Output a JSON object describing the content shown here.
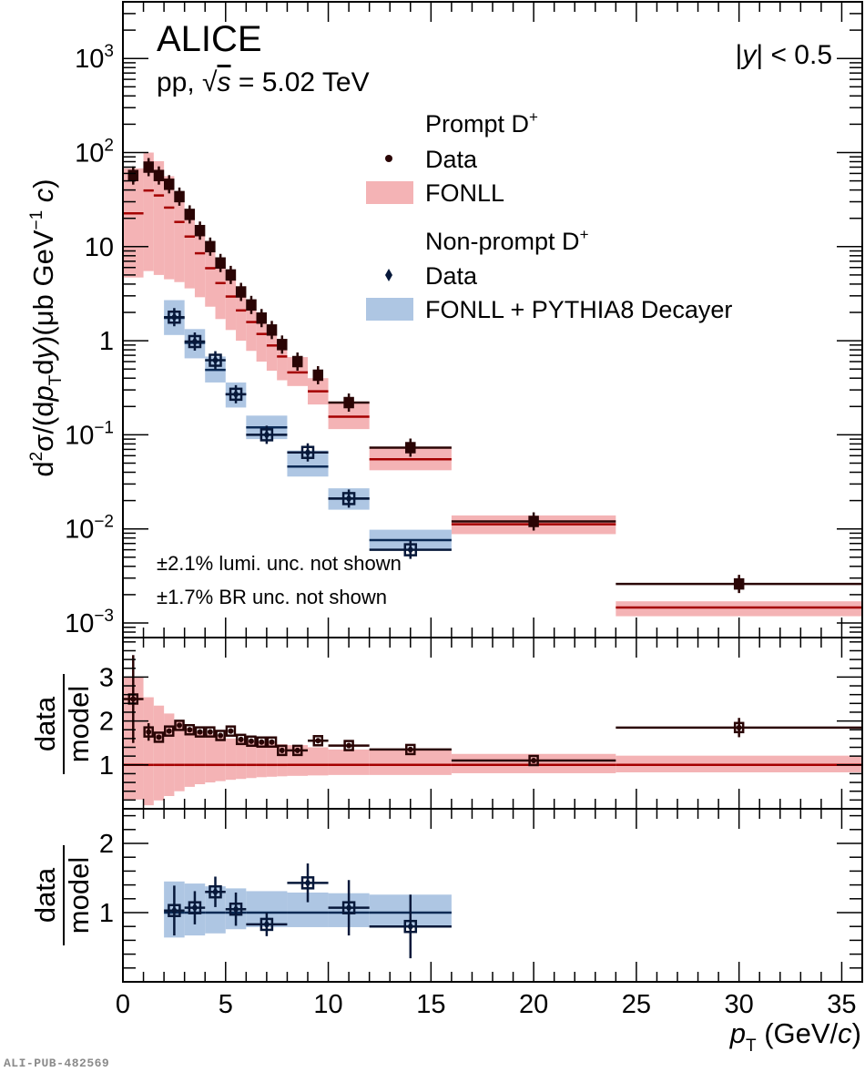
{
  "watermark": "ALI-PUB-482569",
  "colors": {
    "prompt_band": "#f4b3b5",
    "prompt_line": "#a50000",
    "prompt_marker": "#2a0505",
    "nonprompt_band": "#aec6e3",
    "nonprompt_line": "#0b2a55",
    "nonprompt_marker": "#07183a"
  },
  "annotations": {
    "experiment": "ALICE",
    "system": "pp, √s = 5.02 TeV",
    "rapidity": "|y| < 0.5",
    "lumi_note": "±2.1% lumi. unc. not shown",
    "br_note": "±1.7% BR unc. not shown"
  },
  "legend": {
    "prompt_header": "Prompt D+",
    "prompt_data": "Data",
    "prompt_model": "FONLL",
    "nonprompt_header": "Non-prompt D+",
    "nonprompt_data": "Data",
    "nonprompt_model": "FONLL + PYTHIA8 Decayer"
  },
  "chart_data": [
    {
      "type": "scatter",
      "panel": "cross-section",
      "ylabel": "d²σ/(dpT dy)(μb GeV⁻¹ c)",
      "yscale": "log",
      "ylim": [
        0.0007,
        4000
      ],
      "xlim": [
        0,
        36
      ],
      "ytick_labels": [
        "10⁻³",
        "10⁻²",
        "10⁻¹",
        "1",
        "10",
        "10²",
        "10³"
      ],
      "ytick_values": [
        0.001,
        0.01,
        0.1,
        1,
        10,
        100,
        1000
      ],
      "series": [
        {
          "name": "Prompt D+ Data",
          "bins": [
            [
              0,
              1
            ],
            [
              1,
              1.5
            ],
            [
              1.5,
              2
            ],
            [
              2,
              2.5
            ],
            [
              2.5,
              3
            ],
            [
              3,
              3.5
            ],
            [
              3.5,
              4
            ],
            [
              4,
              4.5
            ],
            [
              4.5,
              5
            ],
            [
              5,
              5.5
            ],
            [
              5.5,
              6
            ],
            [
              6,
              6.5
            ],
            [
              6.5,
              7
            ],
            [
              7,
              7.5
            ],
            [
              7.5,
              8
            ],
            [
              8,
              9
            ],
            [
              9,
              10
            ],
            [
              10,
              12
            ],
            [
              12,
              16
            ],
            [
              16,
              24
            ],
            [
              24,
              36
            ]
          ],
          "values": [
            57,
            70,
            57,
            46,
            34,
            22,
            14.8,
            10.0,
            6.7,
            5.0,
            3.3,
            2.4,
            1.74,
            1.3,
            0.91,
            0.6,
            0.43,
            0.22,
            0.073,
            0.012,
            0.0026
          ]
        },
        {
          "name": "Prompt D+ FONLL",
          "bins": [
            [
              0,
              1
            ],
            [
              1,
              1.5
            ],
            [
              1.5,
              2
            ],
            [
              2,
              2.5
            ],
            [
              2.5,
              3
            ],
            [
              3,
              3.5
            ],
            [
              3.5,
              4
            ],
            [
              4,
              4.5
            ],
            [
              4.5,
              5
            ],
            [
              5,
              5.5
            ],
            [
              5.5,
              6
            ],
            [
              6,
              6.5
            ],
            [
              6.5,
              7
            ],
            [
              7,
              7.5
            ],
            [
              7.5,
              8
            ],
            [
              8,
              9
            ],
            [
              9,
              10
            ],
            [
              10,
              12
            ],
            [
              12,
              16
            ],
            [
              16,
              24
            ],
            [
              24,
              36
            ]
          ],
          "central": [
            22.6,
            39.5,
            35,
            26,
            18.3,
            12.8,
            8.5,
            5.9,
            4.1,
            2.95,
            2.1,
            1.58,
            1.18,
            0.89,
            0.68,
            0.46,
            0.29,
            0.156,
            0.055,
            0.0112,
            0.00146
          ],
          "upper": [
            68,
            100,
            81,
            56,
            37,
            24,
            15.2,
            10.3,
            6.9,
            4.9,
            3.4,
            2.5,
            1.8,
            1.33,
            1.0,
            0.67,
            0.4,
            0.225,
            0.073,
            0.0139,
            0.0017
          ],
          "lower": [
            4.7,
            5.5,
            5.0,
            4.5,
            4.2,
            3.6,
            2.9,
            2.3,
            1.7,
            1.3,
            1.0,
            0.78,
            0.6,
            0.48,
            0.38,
            0.33,
            0.21,
            0.115,
            0.042,
            0.0088,
            0.00118
          ]
        },
        {
          "name": "Non-prompt D+ Data",
          "bins": [
            [
              2,
              3
            ],
            [
              3,
              4
            ],
            [
              4,
              5
            ],
            [
              5,
              6
            ],
            [
              6,
              8
            ],
            [
              8,
              10
            ],
            [
              10,
              12
            ],
            [
              12,
              16
            ]
          ],
          "values": [
            1.78,
            0.98,
            0.62,
            0.27,
            0.1,
            0.065,
            0.021,
            0.006
          ]
        },
        {
          "name": "Non-prompt D+ FONLL + PYTHIA8 Decayer",
          "bins": [
            [
              2,
              3
            ],
            [
              3,
              4
            ],
            [
              4,
              5
            ],
            [
              5,
              6
            ],
            [
              6,
              8
            ],
            [
              8,
              10
            ],
            [
              10,
              12
            ],
            [
              12,
              16
            ]
          ],
          "central": [
            1.75,
            0.95,
            0.49,
            0.27,
            0.12,
            0.046,
            0.021,
            0.0076
          ],
          "upper": [
            2.7,
            1.33,
            0.68,
            0.36,
            0.16,
            0.068,
            0.027,
            0.0098
          ],
          "lower": [
            1.15,
            0.65,
            0.36,
            0.195,
            0.09,
            0.036,
            0.016,
            0.006
          ]
        }
      ]
    },
    {
      "type": "scatter",
      "panel": "ratio-prompt",
      "ylabel": "data/model",
      "ylim": [
        0,
        3.9
      ],
      "xlim": [
        0,
        36
      ],
      "ytick_labels": [
        "1",
        "2",
        "3"
      ],
      "ytick_values": [
        1,
        2,
        3
      ],
      "series": [
        {
          "name": "Prompt D+ data/FONLL",
          "bins": [
            [
              0,
              1
            ],
            [
              1,
              1.5
            ],
            [
              1.5,
              2
            ],
            [
              2,
              2.5
            ],
            [
              2.5,
              3
            ],
            [
              3,
              3.5
            ],
            [
              3.5,
              4
            ],
            [
              4,
              4.5
            ],
            [
              4.5,
              5
            ],
            [
              5,
              5.5
            ],
            [
              5.5,
              6
            ],
            [
              6,
              6.5
            ],
            [
              6.5,
              7
            ],
            [
              7,
              7.5
            ],
            [
              7.5,
              8
            ],
            [
              8,
              9
            ],
            [
              9,
              10
            ],
            [
              10,
              12
            ],
            [
              12,
              16
            ],
            [
              16,
              24
            ],
            [
              24,
              36
            ]
          ],
          "values": [
            2.5,
            1.75,
            1.63,
            1.77,
            1.9,
            1.8,
            1.75,
            1.75,
            1.67,
            1.77,
            1.58,
            1.54,
            1.52,
            1.52,
            1.33,
            1.33,
            1.55,
            1.44,
            1.35,
            1.1,
            1.85
          ],
          "stat_err": [
            1.0,
            0.2,
            0.06,
            0.06,
            0.06,
            0.06,
            0.06,
            0.06,
            0.06,
            0.06,
            0.06,
            0.06,
            0.06,
            0.06,
            0.06,
            0.06,
            0.06,
            0.06,
            0.06,
            0.05,
            0.22
          ]
        },
        {
          "name": "FONLL uncertainty band",
          "bins": [
            [
              0,
              1
            ],
            [
              1,
              1.5
            ],
            [
              1.5,
              2
            ],
            [
              2,
              2.5
            ],
            [
              2.5,
              3
            ],
            [
              3,
              3.5
            ],
            [
              3.5,
              4
            ],
            [
              4,
              4.5
            ],
            [
              4.5,
              5
            ],
            [
              5,
              5.5
            ],
            [
              5.5,
              6
            ],
            [
              6,
              6.5
            ],
            [
              6.5,
              7
            ],
            [
              7,
              7.5
            ],
            [
              7.5,
              8
            ],
            [
              8,
              9
            ],
            [
              9,
              10
            ],
            [
              10,
              12
            ],
            [
              12,
              16
            ],
            [
              16,
              24
            ],
            [
              24,
              36
            ]
          ],
          "central": [
            1,
            1,
            1,
            1,
            1,
            1,
            1,
            1,
            1,
            1,
            1,
            1,
            1,
            1,
            1,
            1,
            1,
            1,
            1,
            1,
            1
          ],
          "upper": [
            3.0,
            2.54,
            2.35,
            2.17,
            2.0,
            1.85,
            1.75,
            1.7,
            1.65,
            1.6,
            1.57,
            1.55,
            1.52,
            1.5,
            1.47,
            1.45,
            1.4,
            1.35,
            1.35,
            1.25,
            1.21
          ],
          "lower": [
            0.21,
            0.08,
            0.19,
            0.29,
            0.4,
            0.5,
            0.56,
            0.6,
            0.63,
            0.66,
            0.68,
            0.7,
            0.72,
            0.73,
            0.74,
            0.75,
            0.76,
            0.77,
            0.77,
            0.81,
            0.83
          ]
        }
      ]
    },
    {
      "type": "scatter",
      "panel": "ratio-nonprompt",
      "ylabel": "data/model",
      "xlabel": "pT (GeV/c)",
      "ylim": [
        0,
        2.5
      ],
      "xlim": [
        0,
        36
      ],
      "ytick_labels": [
        "1",
        "2"
      ],
      "ytick_values": [
        1,
        2
      ],
      "xtick_labels": [
        "0",
        "5",
        "10",
        "15",
        "20",
        "25",
        "30",
        "35"
      ],
      "xtick_values": [
        0,
        5,
        10,
        15,
        20,
        25,
        30,
        35
      ],
      "series": [
        {
          "name": "Non-prompt D+ data/model",
          "bins": [
            [
              2,
              3
            ],
            [
              3,
              4
            ],
            [
              4,
              5
            ],
            [
              5,
              6
            ],
            [
              6,
              8
            ],
            [
              8,
              10
            ],
            [
              10,
              12
            ],
            [
              12,
              16
            ]
          ],
          "values": [
            1.03,
            1.07,
            1.3,
            1.05,
            0.83,
            1.43,
            1.07,
            0.8
          ],
          "stat_err": [
            0.36,
            0.24,
            0.22,
            0.24,
            0.17,
            0.28,
            0.4,
            0.46
          ]
        },
        {
          "name": "FONLL + PYTHIA8 Decayer uncertainty band",
          "bins": [
            [
              2,
              3
            ],
            [
              3,
              4
            ],
            [
              4,
              5
            ],
            [
              5,
              6
            ],
            [
              6,
              8
            ],
            [
              8,
              10
            ],
            [
              10,
              12
            ],
            [
              12,
              16
            ]
          ],
          "central": [
            1,
            1,
            1,
            1,
            1,
            1,
            1,
            1
          ],
          "upper": [
            1.45,
            1.42,
            1.38,
            1.35,
            1.31,
            1.29,
            1.28,
            1.26
          ],
          "lower": [
            0.64,
            0.67,
            0.7,
            0.76,
            0.79,
            0.79,
            0.79,
            0.79
          ]
        }
      ]
    }
  ]
}
